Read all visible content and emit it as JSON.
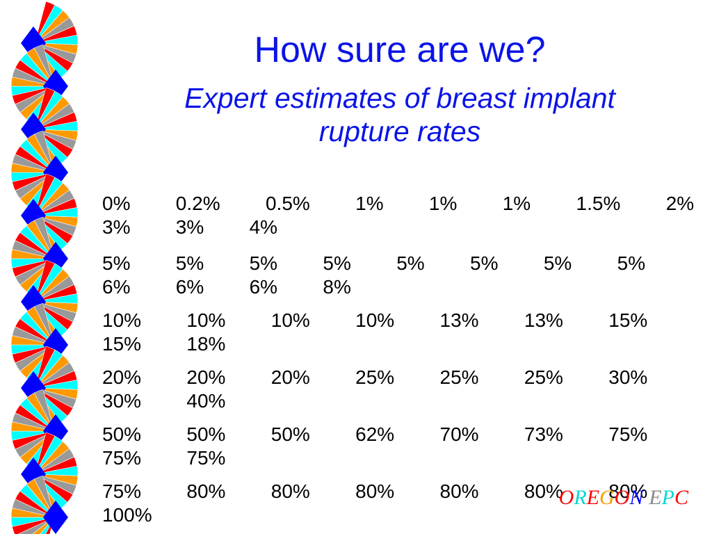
{
  "slide": {
    "title": "How sure are we?",
    "subtitle_line1": "Expert estimates of breast implant",
    "subtitle_line2": "rupture rates",
    "estimate_rows": [
      "0%   0.2%   0.5%   1%   1%   1%   1.5%   2%   3%   3%   4%",
      "5%   5%   5%   5%   5%   5%   5%   5%   6%   6%   6%   8%",
      "10%   10%   10%   10%   13%   13%   15%   15%   18%",
      "20%   20%   20%   25%   25%   25%   30%   30%   40%",
      "50%   50%   50%   62%   70%   73%   75%   75%   75%",
      "75%   80%   80%   80%   80%   80%   80%   100%"
    ],
    "logo_letters": [
      {
        "char": "O",
        "color": "#ff0000"
      },
      {
        "char": "R",
        "color": "#00d8d8"
      },
      {
        "char": "E",
        "color": "#ff0000"
      },
      {
        "char": "G",
        "color": "#f0a000"
      },
      {
        "char": "O",
        "color": "#ff0000"
      },
      {
        "char": "N",
        "color": "#0000ff"
      },
      {
        "char": " ",
        "color": "#000000"
      },
      {
        "char": "E",
        "color": "#888888"
      },
      {
        "char": "P",
        "color": "#00d8d8"
      },
      {
        "char": "C",
        "color": "#ff0000"
      }
    ]
  },
  "colors": {
    "title": "#0a14e6",
    "body_text": "#000000",
    "fan_red": "#ff0000",
    "fan_cyan": "#00ffff",
    "fan_orange": "#ff9900",
    "fan_gray": "#999999",
    "fan_blue": "#0000ff"
  },
  "icons": {
    "border_decoration": "fan-border-icon"
  }
}
